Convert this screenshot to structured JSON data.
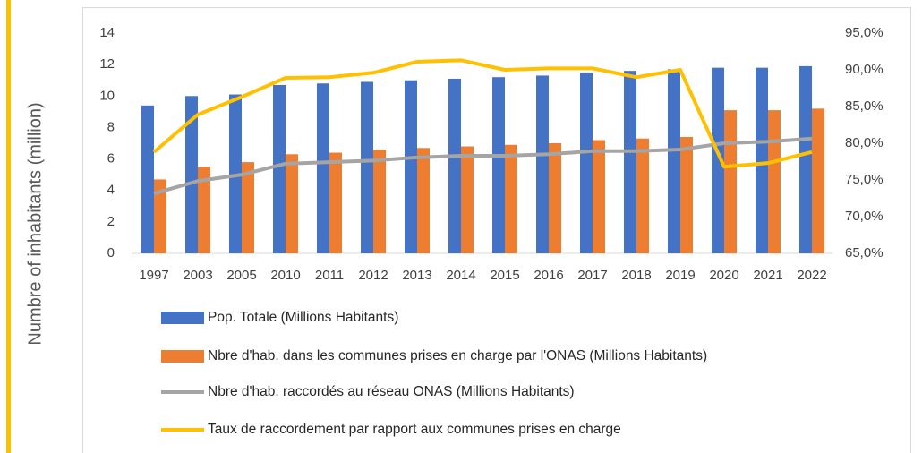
{
  "chart_data": {
    "type": "combo",
    "y_axis_label": "Numbre of inhabitants (million)",
    "categories": [
      "1997",
      "2003",
      "2005",
      "2010",
      "2011",
      "2012",
      "2013",
      "2014",
      "2015",
      "2016",
      "2017",
      "2018",
      "2019",
      "2020",
      "2021",
      "2022"
    ],
    "series": [
      {
        "name": "Pop. Totale  (Millions Habitants)",
        "type": "bar",
        "color": "#4472c4",
        "values": [
          9.4,
          10.0,
          10.1,
          10.7,
          10.8,
          10.9,
          11.0,
          11.1,
          11.2,
          11.3,
          11.5,
          11.6,
          11.7,
          11.8,
          11.8,
          11.9
        ]
      },
      {
        "name": "Nbre d'hab. dans les communes prises en charge par l'ONAS (Millions Habitants)",
        "type": "bar",
        "color": "#ed7d31",
        "values": [
          4.7,
          5.5,
          5.8,
          6.3,
          6.4,
          6.6,
          6.7,
          6.8,
          6.9,
          7.0,
          7.2,
          7.3,
          7.4,
          9.1,
          9.1,
          9.2
        ]
      },
      {
        "name": "Nbre d'hab. raccordés au réseau ONAS (Millions Habitants)",
        "type": "line",
        "color": "#a5a5a5",
        "values": [
          3.8,
          4.6,
          5.0,
          5.7,
          5.8,
          5.9,
          6.1,
          6.2,
          6.2,
          6.3,
          6.5,
          6.5,
          6.6,
          7.0,
          7.1,
          7.3
        ]
      },
      {
        "name": "Taux de raccordement par rapport aux communes prises en charge",
        "type": "line",
        "color": "#ffc000",
        "axis": "y2",
        "values": [
          78.8,
          83.9,
          86.3,
          88.9,
          89.0,
          89.6,
          91.1,
          91.3,
          90.0,
          90.2,
          90.2,
          89.0,
          90.0,
          76.8,
          77.3,
          78.8
        ]
      }
    ],
    "ylim": [
      0,
      14
    ],
    "yticks": [
      0,
      2,
      4,
      6,
      8,
      10,
      12,
      14
    ],
    "y2lim": [
      65,
      95
    ],
    "y2ticks": [
      {
        "value": 65,
        "label": "65,0%"
      },
      {
        "value": 70,
        "label": "70,0%"
      },
      {
        "value": 75,
        "label": "75,0%"
      },
      {
        "value": 80,
        "label": "80,0%"
      },
      {
        "value": 85,
        "label": "85,0%"
      },
      {
        "value": 90,
        "label": "90,0%"
      },
      {
        "value": 95,
        "label": "95,0%"
      }
    ],
    "grid": false
  }
}
